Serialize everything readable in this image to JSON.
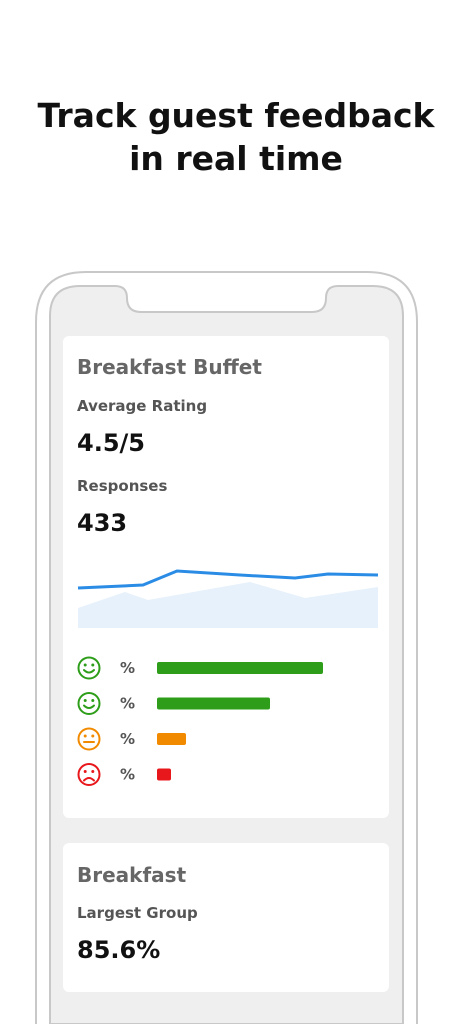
{
  "header": {
    "title_lines": [
      "Track guest feedback",
      "in real time"
    ]
  },
  "cards": [
    {
      "title": "Breakfast Buffet",
      "metrics": [
        {
          "label": "Average Rating",
          "value": "4.5/5"
        },
        {
          "label": "Responses",
          "value": "433"
        }
      ],
      "feedback_rows": [
        {
          "label": "%"
        },
        {
          "label": "%"
        },
        {
          "label": "%"
        },
        {
          "label": "%"
        }
      ]
    },
    {
      "title": "Breakfast",
      "metrics": [
        {
          "label": "Largest Group",
          "value": "85.6%"
        }
      ]
    }
  ]
}
